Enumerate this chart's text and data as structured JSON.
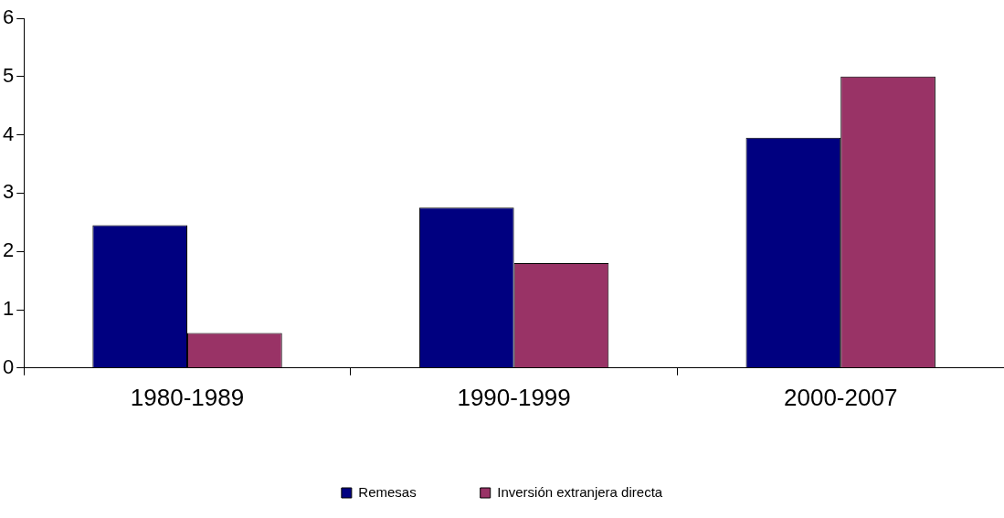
{
  "chart_data": {
    "type": "bar",
    "categories": [
      "1980-1989",
      "1990-1999",
      "2000-2007"
    ],
    "series": [
      {
        "name": "Remesas",
        "color": "#000080",
        "values": [
          2.45,
          2.75,
          3.95
        ]
      },
      {
        "name": "Inversión extranjera directa",
        "color": "#993366",
        "values": [
          0.6,
          1.8,
          5.0
        ]
      }
    ],
    "ylim": [
      0,
      6
    ],
    "yticks": [
      0,
      1,
      2,
      3,
      4,
      5,
      6
    ],
    "grid": false,
    "legend": "bottom"
  }
}
